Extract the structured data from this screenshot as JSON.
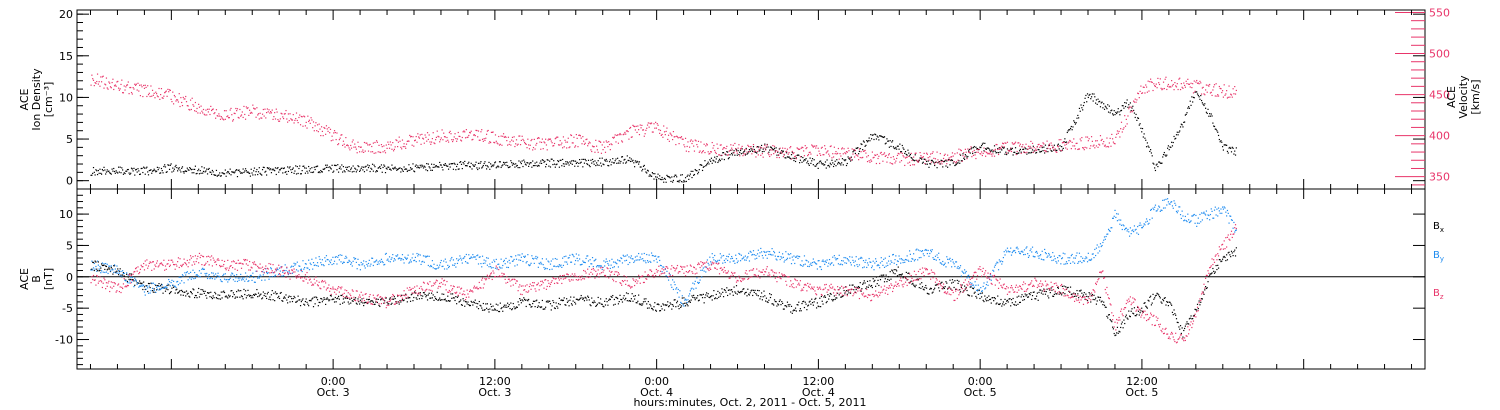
{
  "chart_data": [
    {
      "type": "scatter",
      "panel": "top",
      "left_axis": {
        "label_lines": [
          "ACE",
          "Ion Density",
          "[cm⁻³]"
        ],
        "ylim": [
          -1,
          20.5
        ],
        "ticks": [
          0,
          5,
          10,
          15,
          20
        ],
        "tick_labels": [
          "0",
          "5",
          "10",
          "15",
          "20"
        ],
        "color": "#000000"
      },
      "right_axis": {
        "label_lines": [
          "ACE",
          "Velocity",
          "[km/s]"
        ],
        "ylim": [
          335,
          553
        ],
        "ticks": [
          350,
          400,
          450,
          500,
          550
        ],
        "tick_labels": [
          "350",
          "400",
          "450",
          "500",
          "550"
        ],
        "color": "#e8356a"
      },
      "series": [
        {
          "axis": "left",
          "color": "#000000",
          "x_hours": [
            -18,
            -16,
            -14,
            -12,
            -10,
            -8,
            -6,
            -4,
            -2,
            0,
            2,
            4,
            6,
            8,
            10,
            12,
            14,
            16,
            18,
            20,
            22,
            24,
            26,
            28,
            30,
            32,
            34,
            36,
            38,
            40,
            42,
            44,
            46,
            48,
            50,
            52,
            54,
            56,
            58,
            59,
            60,
            61,
            62,
            63,
            64,
            65,
            66,
            67
          ],
          "y": [
            1.2,
            1.3,
            1.2,
            1.6,
            1.3,
            1.0,
            1.1,
            1.3,
            1.4,
            1.5,
            1.6,
            1.5,
            1.6,
            1.8,
            1.9,
            1.9,
            2.1,
            2.2,
            2.1,
            2.3,
            2.6,
            0.4,
            0.3,
            2.5,
            3.5,
            4.0,
            3.0,
            2.0,
            2.3,
            5.5,
            4.0,
            2.0,
            2.2,
            4.2,
            3.6,
            3.8,
            4.0,
            10.5,
            8.0,
            9.5,
            6.0,
            1.5,
            4.0,
            7.0,
            11.0,
            8.0,
            4.0,
            3.5
          ],
          "noise": 0.5
        },
        {
          "axis": "right",
          "color": "#e8356a",
          "x_hours": [
            -18,
            -16,
            -14,
            -12,
            -10,
            -8,
            -6,
            -4,
            -2,
            0,
            2,
            4,
            6,
            8,
            10,
            12,
            14,
            16,
            18,
            20,
            22,
            24,
            26,
            28,
            30,
            32,
            34,
            36,
            38,
            40,
            42,
            44,
            46,
            48,
            50,
            52,
            54,
            56,
            58,
            60,
            62,
            64,
            66,
            67
          ],
          "y": [
            470,
            462,
            455,
            448,
            435,
            425,
            430,
            425,
            418,
            400,
            385,
            388,
            395,
            400,
            402,
            398,
            392,
            390,
            395,
            385,
            405,
            410,
            390,
            385,
            384,
            382,
            380,
            382,
            378,
            375,
            372,
            373,
            375,
            382,
            385,
            386,
            388,
            392,
            395,
            460,
            465,
            460,
            455,
            452
          ],
          "noise": 8
        }
      ]
    },
    {
      "type": "scatter",
      "panel": "bottom",
      "left_axis": {
        "label_lines": [
          "ACE",
          "B",
          "[nT]"
        ],
        "ylim": [
          -14.7,
          14
        ],
        "ticks": [
          -10,
          -5,
          0,
          5,
          10
        ],
        "tick_labels": [
          "-10",
          "-5",
          "0",
          "5",
          "10"
        ]
      },
      "zero_line": true,
      "series": [
        {
          "name": "Bx",
          "base": "B",
          "sub": "x",
          "color": "#000000",
          "x_hours": [
            -18,
            -16,
            -14,
            -12,
            -10,
            -8,
            -6,
            -4,
            -2,
            0,
            2,
            4,
            6,
            8,
            10,
            12,
            14,
            16,
            18,
            20,
            22,
            24,
            26,
            28,
            30,
            32,
            34,
            36,
            38,
            40,
            42,
            44,
            46,
            48,
            50,
            52,
            54,
            56,
            57,
            58,
            59,
            60,
            61,
            62,
            63,
            64,
            65,
            66,
            67
          ],
          "y": [
            2,
            1,
            -1.5,
            -2,
            -2.5,
            -3,
            -2.5,
            -3,
            -4,
            -3.5,
            -4,
            -4,
            -3,
            -3,
            -4,
            -5,
            -4,
            -4.5,
            -3.5,
            -4,
            -3,
            -5,
            -4,
            -3,
            -2,
            -3,
            -5,
            -4,
            -2,
            -1,
            1,
            -2,
            -1,
            -3,
            -4,
            -3,
            -2,
            -3,
            -4,
            -9,
            -6,
            -5,
            -3,
            -4,
            -9,
            -5,
            0,
            3,
            4
          ],
          "noise": 0.8
        },
        {
          "name": "By",
          "base": "B",
          "sub": "y",
          "color": "#1f8cf0",
          "x_hours": [
            -18,
            -16,
            -14,
            -12,
            -10,
            -8,
            -6,
            -4,
            -2,
            0,
            2,
            4,
            6,
            8,
            10,
            12,
            14,
            16,
            18,
            20,
            22,
            24,
            26,
            28,
            30,
            32,
            34,
            36,
            38,
            40,
            42,
            44,
            46,
            48,
            50,
            52,
            54,
            56,
            57,
            58,
            59,
            60,
            61,
            62,
            63,
            64,
            65,
            66,
            67
          ],
          "y": [
            2,
            1,
            -2,
            -1,
            1,
            0,
            0,
            1,
            2,
            3,
            2,
            3,
            3,
            2,
            3,
            2,
            3,
            2,
            3,
            2,
            3,
            3,
            -4,
            3,
            3,
            4,
            3,
            2,
            3,
            2,
            3,
            4,
            2,
            -2,
            4,
            4,
            3,
            3,
            5,
            10,
            7,
            8,
            11,
            12,
            10,
            9,
            10,
            11,
            7
          ],
          "noise": 0.9
        },
        {
          "name": "Bz",
          "base": "B",
          "sub": "z",
          "color": "#e8356a",
          "x_hours": [
            -18,
            -16,
            -14,
            -12,
            -10,
            -8,
            -6,
            -4,
            -2,
            0,
            2,
            4,
            6,
            8,
            10,
            12,
            14,
            16,
            18,
            20,
            22,
            24,
            26,
            28,
            30,
            32,
            34,
            36,
            38,
            40,
            42,
            44,
            46,
            48,
            50,
            52,
            54,
            56,
            57,
            58,
            59,
            60,
            61,
            62,
            63,
            64,
            65,
            66,
            67
          ],
          "y": [
            0,
            -2,
            2,
            2,
            3,
            2,
            2,
            1,
            0,
            -2,
            -3,
            -4,
            -2,
            -1,
            -3,
            1,
            -2,
            -1,
            0,
            1,
            -1,
            1,
            1,
            2,
            0,
            1,
            -1,
            -2,
            -2,
            -3,
            -1,
            1,
            -3,
            1,
            -2,
            -1,
            -2,
            -4,
            1,
            -8,
            -3,
            -6,
            -7,
            -9,
            -10,
            -6,
            2,
            5,
            8
          ],
          "noise": 0.9
        }
      ]
    }
  ],
  "x_axis": {
    "range_hours": [
      -19,
      81
    ],
    "major_ticks": [
      {
        "hour": 0,
        "time": "0:00",
        "date": "Oct. 3"
      },
      {
        "hour": 12,
        "time": "12:00",
        "date": "Oct. 3"
      },
      {
        "hour": 24,
        "time": "0:00",
        "date": "Oct. 4"
      },
      {
        "hour": 36,
        "time": "12:00",
        "date": "Oct. 4"
      },
      {
        "hour": 48,
        "time": "0:00",
        "date": "Oct. 5"
      },
      {
        "hour": 60,
        "time": "12:00",
        "date": "Oct. 5"
      }
    ],
    "title": "hours:minutes, Oct.  2, 2011 - Oct.  5, 2011"
  }
}
